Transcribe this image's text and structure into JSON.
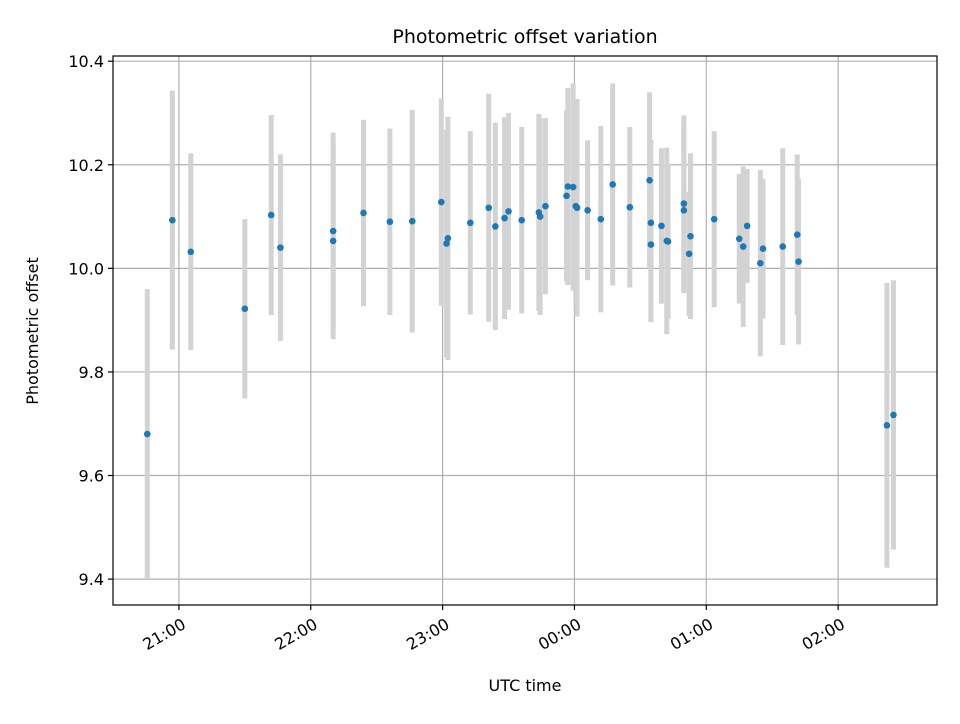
{
  "colors": {
    "marker": "#1f77b4",
    "errorbar": "#d3d3d3",
    "grid": "#b0b0b0",
    "axis": "#000000"
  },
  "chart_data": {
    "type": "scatter",
    "title": "Photometric offset variation",
    "xlabel": "UTC time",
    "ylabel": "Photometric offset",
    "grid": true,
    "x_unit": "hours after 00:00 UTC",
    "xlim": [
      -3.5,
      2.75
    ],
    "ylim": [
      9.35,
      10.41
    ],
    "x_ticks": [
      {
        "value": -3,
        "label": "21:00"
      },
      {
        "value": -2,
        "label": "22:00"
      },
      {
        "value": -1,
        "label": "23:00"
      },
      {
        "value": 0,
        "label": "00:00"
      },
      {
        "value": 1,
        "label": "01:00"
      },
      {
        "value": 2,
        "label": "02:00"
      }
    ],
    "y_ticks": [
      {
        "value": 9.4,
        "label": "9.4"
      },
      {
        "value": 9.6,
        "label": "9.6"
      },
      {
        "value": 9.8,
        "label": "9.8"
      },
      {
        "value": 10.0,
        "label": "10.0"
      },
      {
        "value": 10.2,
        "label": "10.2"
      },
      {
        "value": 10.4,
        "label": "10.4"
      }
    ],
    "series": [
      {
        "name": "offset",
        "points": [
          {
            "x": -3.24,
            "y": 9.68,
            "err": 0.28
          },
          {
            "x": -3.05,
            "y": 10.093,
            "err": 0.25
          },
          {
            "x": -2.91,
            "y": 10.032,
            "err": 0.19
          },
          {
            "x": -2.5,
            "y": 9.922,
            "err": 0.173
          },
          {
            "x": -2.3,
            "y": 10.103,
            "err": 0.193
          },
          {
            "x": -2.23,
            "y": 10.04,
            "err": 0.18
          },
          {
            "x": -1.83,
            "y": 10.072,
            "err": 0.19
          },
          {
            "x": -1.83,
            "y": 10.053,
            "err": 0.19
          },
          {
            "x": -1.6,
            "y": 10.107,
            "err": 0.18
          },
          {
            "x": -1.4,
            "y": 10.09,
            "err": 0.18
          },
          {
            "x": -1.23,
            "y": 10.091,
            "err": 0.215
          },
          {
            "x": -1.01,
            "y": 10.128,
            "err": 0.2
          },
          {
            "x": -0.96,
            "y": 10.058,
            "err": 0.235
          },
          {
            "x": -0.97,
            "y": 10.048,
            "err": 0.22
          },
          {
            "x": -0.79,
            "y": 10.088,
            "err": 0.177
          },
          {
            "x": -0.65,
            "y": 10.117,
            "err": 0.22
          },
          {
            "x": -0.6,
            "y": 10.081,
            "err": 0.2
          },
          {
            "x": -0.53,
            "y": 10.097,
            "err": 0.195
          },
          {
            "x": -0.5,
            "y": 10.11,
            "err": 0.19
          },
          {
            "x": -0.4,
            "y": 10.093,
            "err": 0.18
          },
          {
            "x": -0.27,
            "y": 10.108,
            "err": 0.19
          },
          {
            "x": -0.26,
            "y": 10.1,
            "err": 0.19
          },
          {
            "x": -0.22,
            "y": 10.12,
            "err": 0.17
          },
          {
            "x": -0.06,
            "y": 10.14,
            "err": 0.165
          },
          {
            "x": -0.05,
            "y": 10.158,
            "err": 0.19
          },
          {
            "x": -0.01,
            "y": 10.157,
            "err": 0.2
          },
          {
            "x": 0.01,
            "y": 10.12,
            "err": 0.19
          },
          {
            "x": 0.02,
            "y": 10.117,
            "err": 0.21
          },
          {
            "x": 0.1,
            "y": 10.112,
            "err": 0.135
          },
          {
            "x": 0.2,
            "y": 10.095,
            "err": 0.18
          },
          {
            "x": 0.29,
            "y": 10.162,
            "err": 0.195
          },
          {
            "x": 0.42,
            "y": 10.118,
            "err": 0.155
          },
          {
            "x": 0.57,
            "y": 10.17,
            "err": 0.17
          },
          {
            "x": 0.58,
            "y": 10.088,
            "err": 0.16
          },
          {
            "x": 0.58,
            "y": 10.046,
            "err": 0.15
          },
          {
            "x": 0.66,
            "y": 10.082,
            "err": 0.15
          },
          {
            "x": 0.7,
            "y": 10.053,
            "err": 0.18
          },
          {
            "x": 0.71,
            "y": 10.052,
            "err": 0.15
          },
          {
            "x": 0.83,
            "y": 10.125,
            "err": 0.17
          },
          {
            "x": 0.83,
            "y": 10.112,
            "err": 0.16
          },
          {
            "x": 0.88,
            "y": 10.062,
            "err": 0.16
          },
          {
            "x": 0.87,
            "y": 10.028,
            "err": 0.12
          },
          {
            "x": 1.06,
            "y": 10.095,
            "err": 0.17
          },
          {
            "x": 1.25,
            "y": 10.057,
            "err": 0.125
          },
          {
            "x": 1.28,
            "y": 10.042,
            "err": 0.155
          },
          {
            "x": 1.31,
            "y": 10.082,
            "err": 0.11
          },
          {
            "x": 1.41,
            "y": 10.01,
            "err": 0.18
          },
          {
            "x": 1.43,
            "y": 10.038,
            "err": 0.135
          },
          {
            "x": 1.58,
            "y": 10.042,
            "err": 0.19
          },
          {
            "x": 1.69,
            "y": 10.065,
            "err": 0.155
          },
          {
            "x": 1.7,
            "y": 10.013,
            "err": 0.16
          },
          {
            "x": 2.37,
            "y": 9.697,
            "err": 0.275
          },
          {
            "x": 2.42,
            "y": 9.717,
            "err": 0.26
          }
        ]
      }
    ]
  }
}
